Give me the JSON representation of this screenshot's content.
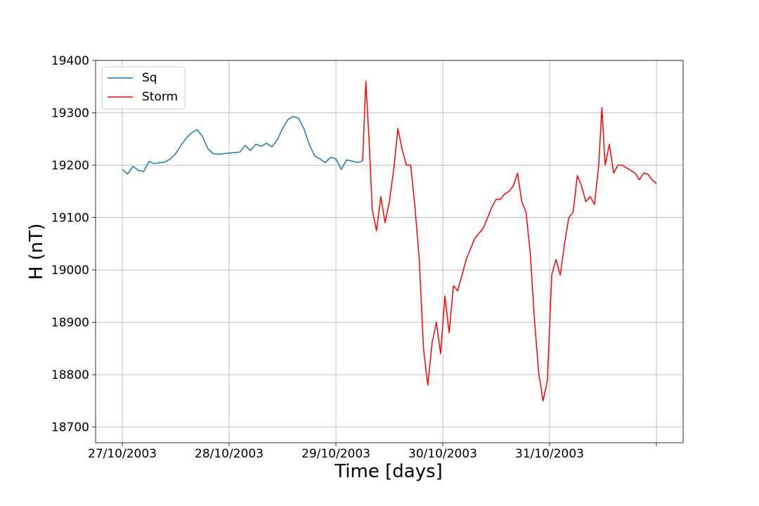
{
  "chart_data": {
    "type": "line",
    "xlabel": "Time [days]",
    "ylabel": "H (nT)",
    "xlim": [
      -0.25,
      5.25
    ],
    "ylim": [
      18670,
      19400
    ],
    "xticks": [
      {
        "value": 0,
        "label": "27/10/2003"
      },
      {
        "value": 1,
        "label": "28/10/2003"
      },
      {
        "value": 2,
        "label": "29/10/2003"
      },
      {
        "value": 3,
        "label": "30/10/2003"
      },
      {
        "value": 4,
        "label": "31/10/2003"
      },
      {
        "value": 5,
        "label": null
      }
    ],
    "yticks": [
      18700,
      18800,
      18900,
      19000,
      19100,
      19200,
      19300,
      19400
    ],
    "grid": true,
    "legend": "upper left",
    "series": [
      {
        "name": "Sq",
        "color": "#1f77b4",
        "x": [
          0,
          0.05,
          0.1,
          0.15,
          0.2,
          0.25,
          0.3,
          0.35,
          0.4,
          0.45,
          0.5,
          0.55,
          0.6,
          0.65,
          0.7,
          0.75,
          0.8,
          0.85,
          0.9,
          0.95,
          1.0,
          1.05,
          1.1,
          1.15,
          1.2,
          1.25,
          1.3,
          1.35,
          1.4,
          1.45,
          1.5,
          1.55,
          1.6,
          1.65,
          1.7,
          1.75,
          1.8,
          1.85,
          1.9,
          1.95,
          2.0,
          2.05,
          2.1,
          2.15,
          2.2,
          2.25
        ],
        "values": [
          19192,
          19183,
          19198,
          19190,
          19188,
          19207,
          19203,
          19205,
          19206,
          19212,
          19222,
          19238,
          19252,
          19262,
          19268,
          19255,
          19232,
          19222,
          19221,
          19222,
          19223,
          19224,
          19225,
          19238,
          19228,
          19240,
          19236,
          19242,
          19235,
          19248,
          19270,
          19287,
          19293,
          19290,
          19270,
          19240,
          19218,
          19212,
          19205,
          19215,
          19212,
          19192,
          19210,
          19208,
          19205,
          19208
        ]
      },
      {
        "name": "Storm",
        "color": "#ff0000",
        "x": [
          2.25,
          2.28,
          2.31,
          2.34,
          2.38,
          2.42,
          2.46,
          2.5,
          2.54,
          2.58,
          2.62,
          2.66,
          2.7,
          2.74,
          2.78,
          2.82,
          2.86,
          2.9,
          2.94,
          2.98,
          3.02,
          3.06,
          3.1,
          3.14,
          3.18,
          3.22,
          3.26,
          3.3,
          3.34,
          3.38,
          3.42,
          3.46,
          3.5,
          3.54,
          3.58,
          3.62,
          3.66,
          3.7,
          3.74,
          3.78,
          3.82,
          3.86,
          3.9,
          3.94,
          3.98,
          4.02,
          4.06,
          4.1,
          4.14,
          4.18,
          4.22,
          4.26,
          4.3,
          4.34,
          4.38,
          4.42,
          4.46,
          4.49,
          4.52,
          4.56,
          4.6,
          4.64,
          4.68,
          4.72,
          4.76,
          4.8,
          4.84,
          4.88,
          4.92,
          4.96,
          5.0
        ],
        "values": [
          19208,
          19360,
          19250,
          19115,
          19075,
          19140,
          19090,
          19130,
          19190,
          19270,
          19230,
          19200,
          19200,
          19120,
          19020,
          18850,
          18780,
          18860,
          18900,
          18840,
          18950,
          18880,
          18970,
          18960,
          18990,
          19020,
          19040,
          19060,
          19070,
          19080,
          19100,
          19120,
          19135,
          19135,
          19145,
          19150,
          19160,
          19185,
          19130,
          19110,
          19030,
          18900,
          18800,
          18750,
          18790,
          18990,
          19020,
          18990,
          19050,
          19100,
          19110,
          19180,
          19160,
          19130,
          19140,
          19125,
          19200,
          19310,
          19200,
          19240,
          19185,
          19200,
          19200,
          19195,
          19190,
          19185,
          19172,
          19185,
          19183,
          19172,
          19165
        ]
      }
    ]
  }
}
